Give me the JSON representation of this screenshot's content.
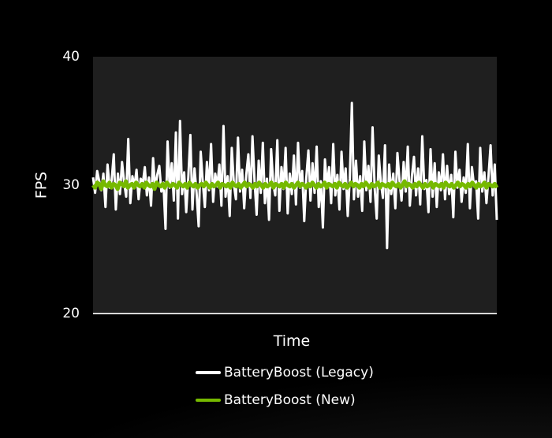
{
  "chart_data": {
    "type": "line",
    "xlabel": "Time",
    "ylabel": "FPS",
    "ylim": [
      20,
      40
    ],
    "yticks": [
      20,
      30,
      40
    ],
    "grid": false,
    "legend_position": "bottom",
    "background": "#1f1f1f",
    "series": [
      {
        "name": "BatteryBoost (Legacy)",
        "color": "#ffffff",
        "values": [
          30.6,
          29.4,
          31.1,
          30.3,
          29.6,
          30.9,
          28.3,
          31.6,
          29.8,
          30.4,
          32.4,
          28.1,
          30.9,
          29.3,
          31.8,
          30.2,
          29.1,
          33.6,
          28.6,
          30.7,
          29.9,
          31.2,
          28.9,
          30.5,
          30.1,
          31.4,
          29.2,
          30.6,
          28.4,
          32.1,
          29.7,
          30.8,
          31.5,
          29.5,
          30.2,
          26.6,
          33.4,
          29.8,
          31.7,
          28.8,
          34.1,
          27.4,
          35.0,
          29.3,
          31.0,
          27.9,
          30.6,
          33.9,
          28.1,
          31.3,
          29.4,
          26.8,
          32.6,
          30.2,
          28.3,
          31.8,
          29.6,
          33.2,
          28.7,
          30.9,
          29.9,
          31.6,
          28.4,
          34.6,
          29.1,
          30.7,
          27.6,
          32.9,
          30.1,
          28.9,
          33.7,
          29.5,
          31.2,
          28.2,
          30.8,
          32.4,
          29.0,
          33.8,
          30.3,
          27.7,
          31.9,
          29.4,
          33.3,
          28.6,
          30.5,
          27.3,
          32.8,
          30.1,
          29.2,
          33.5,
          28.0,
          31.4,
          29.7,
          32.9,
          27.8,
          30.9,
          29.3,
          32.3,
          28.5,
          33.3,
          29.8,
          31.1,
          27.2,
          30.6,
          32.7,
          28.8,
          31.7,
          29.4,
          33.0,
          28.3,
          30.3,
          26.7,
          32.0,
          29.9,
          31.4,
          28.6,
          33.2,
          29.2,
          30.8,
          28.1,
          32.6,
          29.7,
          31.3,
          27.6,
          30.5,
          36.4,
          28.9,
          31.9,
          29.1,
          30.7,
          28.0,
          33.4,
          29.6,
          31.5,
          28.7,
          34.5,
          29.8,
          27.4,
          32.3,
          30.2,
          29.0,
          33.1,
          25.1,
          31.6,
          29.3,
          30.9,
          28.2,
          32.5,
          30.4,
          28.8,
          31.8,
          29.5,
          33.0,
          28.4,
          30.7,
          32.2,
          29.2,
          31.3,
          28.5,
          33.8,
          29.7,
          30.4,
          27.9,
          32.8,
          29.1,
          31.7,
          28.3,
          31.0,
          29.6,
          32.4,
          28.9,
          31.5,
          29.3,
          30.8,
          27.5,
          32.6,
          29.8,
          31.2,
          28.7,
          30.6,
          29.4,
          33.2,
          28.2,
          31.4,
          29.9,
          30.3,
          27.4,
          32.9,
          29.5,
          31.0,
          28.6,
          30.7,
          33.1,
          29.2,
          31.6,
          27.3
        ]
      },
      {
        "name": "BatteryBoost (New)",
        "color": "#76b900",
        "values": [
          30.0,
          29.8,
          30.2,
          30.1,
          29.7,
          30.3,
          30.0,
          29.9,
          30.2,
          29.8,
          30.1,
          30.0,
          29.7,
          30.2,
          30.1,
          29.9,
          30.3,
          29.8,
          30.0,
          30.1,
          29.8,
          30.2,
          30.0,
          29.9,
          30.1,
          29.8,
          30.2,
          30.0,
          29.9,
          30.1,
          29.7,
          30.2,
          30.0,
          29.9,
          30.1,
          29.8,
          30.2,
          30.0,
          29.9,
          30.1,
          30.0,
          29.8,
          30.2,
          30.0,
          29.9,
          30.1,
          29.8,
          30.2,
          30.0,
          29.9,
          30.1,
          29.8,
          30.0,
          30.1,
          29.9,
          30.2,
          30.0,
          29.8,
          30.1,
          29.9,
          30.0,
          30.2,
          29.8,
          30.1,
          30.0,
          29.9,
          30.1,
          29.8,
          30.2,
          30.0,
          29.9,
          30.1,
          29.8,
          30.0,
          30.2,
          29.9,
          30.1,
          30.0,
          29.8,
          30.1,
          29.9,
          30.2,
          30.0,
          29.8,
          30.1,
          29.9,
          30.0,
          30.2,
          29.8,
          30.1,
          30.0,
          29.9,
          30.1,
          29.8,
          30.2,
          30.0,
          29.9,
          30.1,
          29.8,
          30.0,
          30.2,
          29.9,
          30.1,
          30.0,
          29.8,
          30.1,
          29.9,
          30.2,
          30.0,
          29.8,
          30.1,
          29.9,
          30.0,
          30.2,
          29.8,
          30.1,
          30.0,
          29.9,
          30.1,
          29.8,
          30.2,
          30.0,
          29.9,
          30.1,
          29.8,
          30.0,
          30.2,
          29.9,
          30.1,
          30.0,
          29.8,
          30.1,
          29.9,
          30.2,
          30.0,
          29.8,
          30.1,
          29.9,
          30.0,
          30.2,
          29.8,
          30.1,
          30.0,
          29.9,
          30.1,
          29.8,
          30.2,
          30.0,
          29.9,
          30.1,
          29.8,
          30.0,
          30.3,
          29.9,
          30.1,
          30.0,
          29.8,
          30.1,
          29.9,
          30.2,
          30.0,
          29.8,
          30.1,
          29.9,
          30.0,
          30.2,
          29.8,
          30.1,
          30.0,
          29.9,
          30.1,
          29.8,
          30.2,
          30.0,
          29.9,
          30.1,
          29.8,
          30.0,
          30.2,
          29.9,
          30.1,
          30.0,
          29.8,
          30.1,
          29.9,
          30.2,
          30.0,
          29.8,
          30.1,
          29.9,
          30.0,
          30.2,
          29.8,
          30.1,
          30.0,
          29.9,
          30.1,
          29.8
        ]
      }
    ]
  }
}
